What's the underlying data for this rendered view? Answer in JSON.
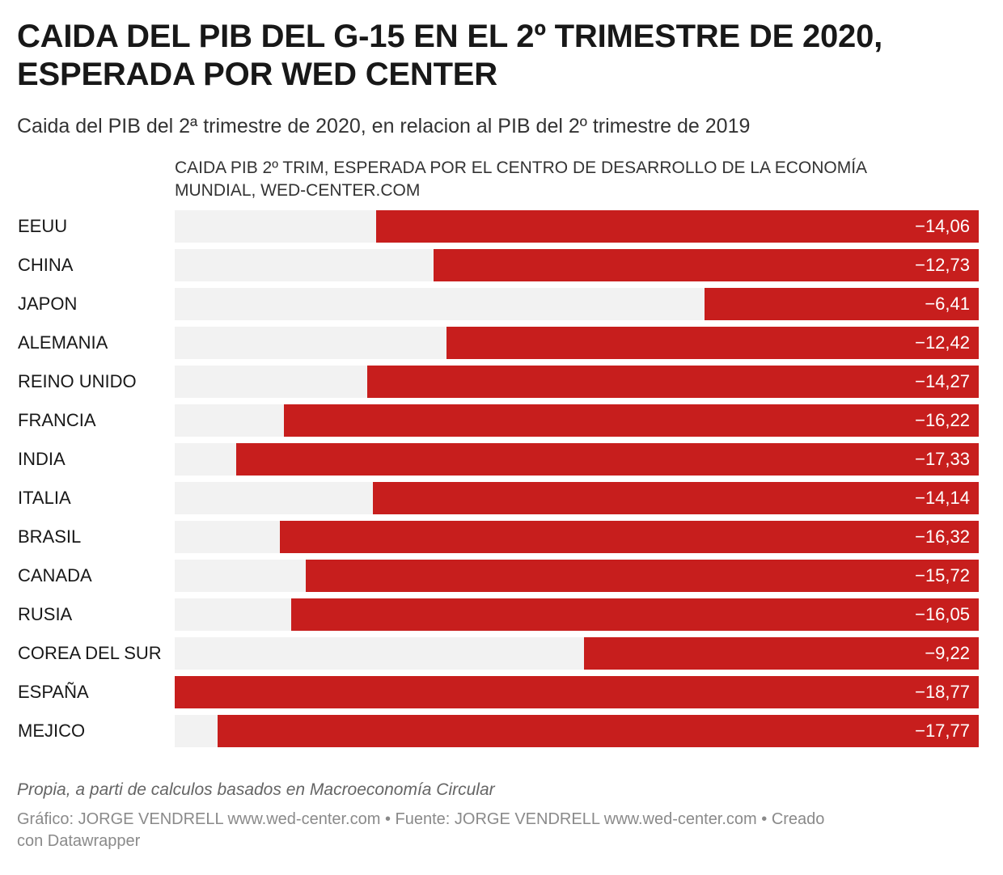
{
  "title": "CAIDA DEL PIB DEL G-15 EN EL 2º TRIMESTRE DE 2020, ESPERADA POR WED CENTER",
  "subtitle": "Caida del PIB del 2ª trimestre de 2020, en relacion al PIB del 2º trimestre de 2019",
  "colors": {
    "bar": "#c71e1d",
    "track": "#f2f2f2",
    "label": "#181818",
    "value_text": "#ffffff"
  },
  "chart_data": {
    "type": "bar",
    "orientation": "horizontal",
    "title": "CAIDA DEL PIB DEL G-15 EN EL 2º TRIMESTRE DE 2020, ESPERADA POR WED CENTER",
    "column_header": "CAIDA PIB 2º TRIM, ESPERADA POR EL CENTRO DE DESARROLLO DE LA ECONOMÍA MUNDIAL, WED-CENTER.COM",
    "categories": [
      "EEUU",
      "CHINA",
      "JAPON",
      "ALEMANIA",
      "REINO UNIDO",
      "FRANCIA",
      "INDIA",
      "ITALIA",
      "BRASIL",
      "CANADA",
      "RUSIA",
      "COREA DEL SUR",
      "ESPAÑA",
      "MEJICO"
    ],
    "values": [
      -14.06,
      -12.73,
      -6.41,
      -12.42,
      -14.27,
      -16.22,
      -17.33,
      -14.14,
      -16.32,
      -15.72,
      -16.05,
      -9.22,
      -18.77,
      -17.77
    ],
    "value_labels": [
      "−14,06",
      "−12,73",
      "−6,41",
      "−12,42",
      "−14,27",
      "−16,22",
      "−17,33",
      "−14,14",
      "−16,32",
      "−15,72",
      "−16,05",
      "−9,22",
      "−18,77",
      "−17,77"
    ],
    "xlim": [
      -18.77,
      0
    ],
    "grid": false,
    "legend": "none"
  },
  "notes": "Propia, a parti de calculos basados en Macroeconomía Circular",
  "footer": "Gráfico: JORGE VENDRELL www.wed-center.com • Fuente: JORGE VENDRELL www.wed-center.com • Creado con Datawrapper"
}
